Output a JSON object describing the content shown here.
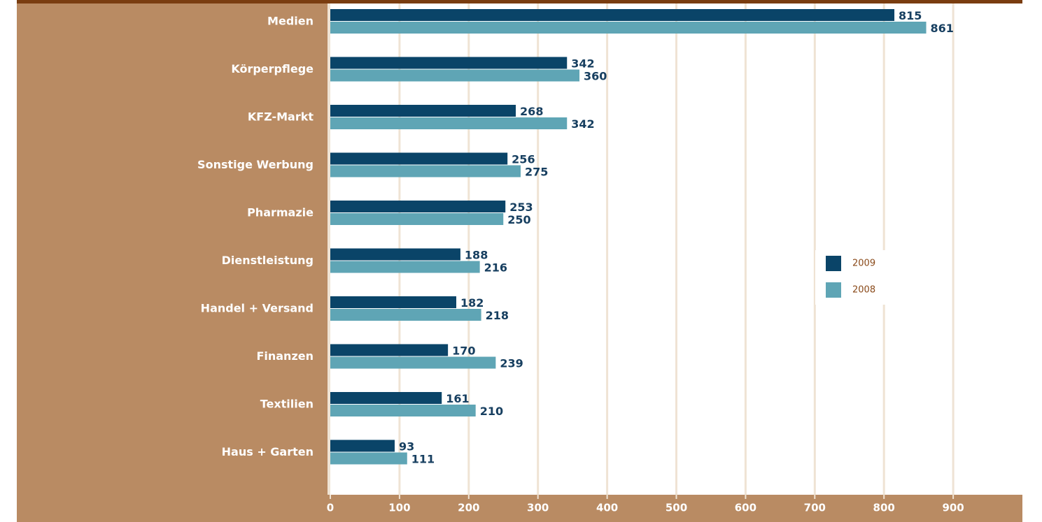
{
  "chart_data": {
    "type": "barh",
    "categories": [
      "Medien",
      "Körperpflege",
      "KFZ-Markt",
      "Sonstige Werbung",
      "Pharmazie",
      "Dienstleistung",
      "Handel + Versand",
      "Finanzen",
      "Textilien",
      "Haus + Garten"
    ],
    "series": [
      {
        "name": "2009",
        "color": "#0a4468",
        "values": [
          815,
          342,
          268,
          256,
          253,
          188,
          182,
          170,
          161,
          93
        ]
      },
      {
        "name": "2008",
        "color": "#5fa5b5",
        "values": [
          861,
          360,
          342,
          275,
          250,
          216,
          218,
          239,
          210,
          111
        ]
      }
    ],
    "xlim": [
      0,
      1000
    ],
    "xticks": [
      0,
      100,
      200,
      300,
      400,
      500,
      600,
      700,
      800,
      900
    ],
    "grid": true,
    "legend": "right"
  }
}
